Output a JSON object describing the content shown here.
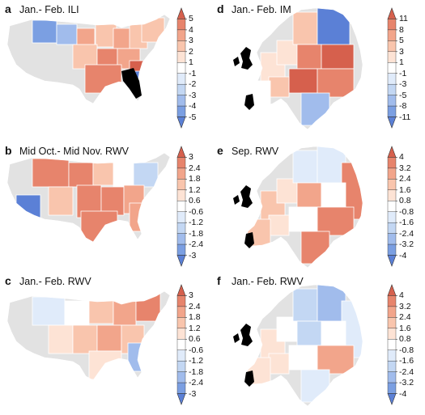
{
  "panels": [
    {
      "letter": "a",
      "title": "Jan.- Feb. ILI",
      "region": "us",
      "colorbar": {
        "ticks": [
          "5",
          "4",
          "3",
          "2",
          "1",
          "-1",
          "-2",
          "-3",
          "-4",
          "-5"
        ]
      }
    },
    {
      "letter": "b",
      "title": "Mid Oct.- Mid Nov. RWV",
      "region": "us",
      "colorbar": {
        "ticks": [
          "3",
          "2.4",
          "1.8",
          "1.2",
          "0.6",
          "-0.6",
          "-1.2",
          "-1.8",
          "-2.4",
          "-3"
        ]
      }
    },
    {
      "letter": "c",
      "title": "Jan.- Feb. RWV",
      "region": "us",
      "colorbar": {
        "ticks": [
          "3",
          "2.4",
          "1.8",
          "1.2",
          "0.6",
          "-0.6",
          "-1.2",
          "-1.8",
          "-2.4",
          "-3"
        ]
      }
    },
    {
      "letter": "d",
      "title": "Jan.- Feb. IM",
      "region": "europe",
      "colorbar": {
        "ticks": [
          "11",
          "8",
          "5",
          "3",
          "1",
          "-1",
          "-3",
          "-5",
          "-8",
          "-11"
        ]
      }
    },
    {
      "letter": "e",
      "title": "Sep. RWV",
      "region": "europe",
      "colorbar": {
        "ticks": [
          "4",
          "3.2",
          "2.4",
          "1.6",
          "0.8",
          "-0.8",
          "-1.6",
          "-2.4",
          "-3.2",
          "-4"
        ]
      }
    },
    {
      "letter": "f",
      "title": "Jan.- Feb. RWV",
      "region": "europe",
      "colorbar": {
        "ticks": [
          "4",
          "3.2",
          "2.4",
          "1.6",
          "0.8",
          "-0.8",
          "-1.6",
          "-2.4",
          "-3.2",
          "-4"
        ]
      }
    }
  ],
  "colors": {
    "no_data": "#e2e2e2",
    "excluded": "#000000",
    "scale": [
      "#d6604d",
      "#e7846c",
      "#f2a58b",
      "#f9c5ad",
      "#fde3d5",
      "#ffffff",
      "#e0ebfa",
      "#c3d7f3",
      "#a1bcec",
      "#7b9fe2",
      "#5b80d6"
    ]
  }
}
